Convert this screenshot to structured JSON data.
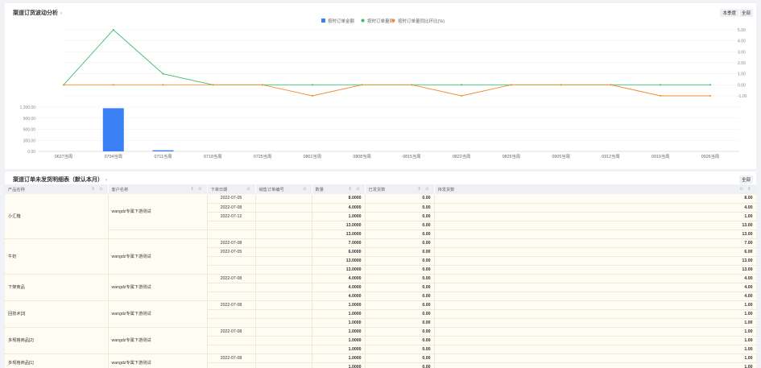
{
  "chart_panel": {
    "title": "渠道订货波动分析",
    "title_icon": "chevron-right-icon",
    "buttons": [
      "本季度",
      "全部"
    ],
    "legend": [
      "按时订单金额",
      "按时订单量同",
      "按时订单量同比环比(%)"
    ]
  },
  "chart_data": {
    "type": "line+bar",
    "categories": [
      "0627当周",
      "0704当周",
      "0711当周",
      "0718当周",
      "0725当周",
      "0801当周",
      "0808当周",
      "0815当周",
      "0822当周",
      "0829当周",
      "0905当周",
      "0912当周",
      "0919当周",
      "0926当周"
    ],
    "line_y_ticks": [
      "5.00",
      "4.00",
      "3.00",
      "2.00",
      "1.00",
      "0.00",
      "-1.00"
    ],
    "bar_y_ticks": [
      "1,200.00",
      "900.00",
      "600.00",
      "300.00",
      "0.00"
    ],
    "line_ylim": [
      -1,
      5
    ],
    "bar_ylim": [
      0,
      1200
    ],
    "series": [
      {
        "name": "按时订单金额",
        "type": "bar",
        "color": "#3b7ff5",
        "values": [
          0,
          1170,
          30,
          0,
          0,
          0,
          0,
          0,
          0,
          0,
          0,
          0,
          0,
          0
        ]
      },
      {
        "name": "按时订单量同",
        "type": "line",
        "color": "#3dba6f",
        "values": [
          0,
          5,
          1,
          0,
          0,
          0,
          0,
          0,
          0,
          0,
          0,
          0,
          0,
          0
        ]
      },
      {
        "name": "按时订单量同比环比(%)",
        "type": "line",
        "color": "#f08c2e",
        "values": [
          0,
          0,
          0,
          0,
          0,
          -1,
          0,
          0,
          -1,
          0,
          0,
          0,
          -1,
          -1
        ]
      }
    ]
  },
  "table_panel": {
    "title": "渠道订单未发货明细表（默认本月）",
    "title_icon": "chevron-right-icon",
    "button": "全部",
    "columns": [
      "产品名称",
      "客户名称",
      "下单日期",
      "销售订单编号",
      "数量",
      "已发货数",
      "待发货数"
    ],
    "groups": [
      {
        "product": "小汇箱",
        "customer": "wangdz专属下游测试",
        "rows": [
          {
            "date": "2022-07-05",
            "qty": "8.0000",
            "shipped": "0.00",
            "pending": "8.00"
          },
          {
            "date": "2022-07-08",
            "qty": "4.0000",
            "shipped": "0.00",
            "pending": "4.00"
          },
          {
            "date": "2022-07-12",
            "qty": "1.0000",
            "shipped": "0.00",
            "pending": "1.00"
          },
          {
            "date": "",
            "qty": "13.0000",
            "shipped": "0.00",
            "pending": "13.00"
          },
          {
            "date": "",
            "qty": "13.0000",
            "shipped": "0.00",
            "pending": "13.00"
          }
        ]
      },
      {
        "product": "牛奶",
        "customer": "wangdz专属下游测试",
        "rows": [
          {
            "date": "2022-07-08",
            "qty": "7.0000",
            "shipped": "0.00",
            "pending": "7.00"
          },
          {
            "date": "2022-07-05",
            "qty": "6.0000",
            "shipped": "0.00",
            "pending": "6.00"
          },
          {
            "date": "",
            "qty": "13.0000",
            "shipped": "0.00",
            "pending": "13.00"
          },
          {
            "date": "",
            "qty": "13.0000",
            "shipped": "0.00",
            "pending": "13.00"
          }
        ]
      },
      {
        "product": "下架商品",
        "customer": "wangdz专属下游测试",
        "rows": [
          {
            "date": "2022-07-08",
            "qty": "4.0000",
            "shipped": "0.00",
            "pending": "4.00"
          },
          {
            "date": "",
            "qty": "4.0000",
            "shipped": "0.00",
            "pending": "4.00"
          },
          {
            "date": "",
            "qty": "4.0000",
            "shipped": "0.00",
            "pending": "4.00"
          }
        ]
      },
      {
        "product": "回技术[3]",
        "customer": "wangdz专属下游测试",
        "rows": [
          {
            "date": "2022-07-08",
            "qty": "1.0000",
            "shipped": "0.00",
            "pending": "1.00"
          },
          {
            "date": "",
            "qty": "1.0000",
            "shipped": "0.00",
            "pending": "1.00"
          },
          {
            "date": "",
            "qty": "1.0000",
            "shipped": "0.00",
            "pending": "1.00"
          }
        ]
      },
      {
        "product": "多规格商品[2]",
        "customer": "wangdz专属下游测试",
        "rows": [
          {
            "date": "2022-07-08",
            "qty": "1.0000",
            "shipped": "0.00",
            "pending": "1.00"
          },
          {
            "date": "",
            "qty": "1.0000",
            "shipped": "0.00",
            "pending": "1.00"
          },
          {
            "date": "",
            "qty": "1.0000",
            "shipped": "0.00",
            "pending": "1.00"
          }
        ]
      },
      {
        "product": "多规格商品[1]",
        "customer": "wangdz专属下游测试",
        "rows": [
          {
            "date": "2022-07-08",
            "qty": "1.0000",
            "shipped": "0.00",
            "pending": "1.00"
          },
          {
            "date": "",
            "qty": "1.0000",
            "shipped": "0.00",
            "pending": "1.00"
          }
        ]
      }
    ]
  }
}
